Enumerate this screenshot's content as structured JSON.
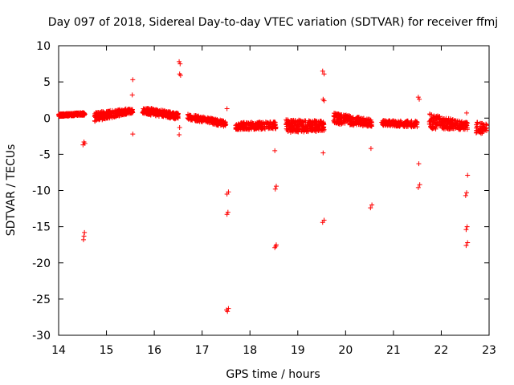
{
  "chart_data": {
    "type": "scatter",
    "title": "Day 097 of 2018, Sidereal Day-to-day VTEC variation (SDTVAR) for receiver ffmj",
    "xlabel": "GPS time / hours",
    "ylabel": "SDTVAR / TECUs",
    "xlim": [
      14,
      23
    ],
    "ylim": [
      -30,
      10
    ],
    "xticks": [
      14,
      15,
      16,
      17,
      18,
      19,
      20,
      21,
      22,
      23
    ],
    "yticks": [
      10,
      5,
      0,
      -5,
      -10,
      -15,
      -20,
      -25,
      -30
    ],
    "grid": false,
    "legend": "none",
    "marker": "+",
    "color": "#ff0000",
    "series": [
      {
        "name": "SDTVAR",
        "clusters": [
          {
            "x": [
              14.0,
              14.55
            ],
            "y_start": [
              0.2,
              0.6
            ],
            "y_end": [
              0.4,
              0.8
            ],
            "n": 260
          },
          {
            "x": [
              14.75,
              15.55
            ],
            "y_start": [
              -0.5,
              0.8
            ],
            "y_end": [
              0.7,
              1.4
            ],
            "n": 260
          },
          {
            "x": [
              15.75,
              16.5
            ],
            "y_start": [
              0.6,
              1.6
            ],
            "y_end": [
              -0.2,
              0.7
            ],
            "n": 260
          },
          {
            "x": [
              16.7,
              17.5
            ],
            "y_start": [
              -0.2,
              0.6
            ],
            "y_end": [
              -1.2,
              -0.4
            ],
            "n": 240
          },
          {
            "x": [
              17.7,
              18.55
            ],
            "y_start": [
              -1.6,
              -0.6
            ],
            "y_end": [
              -1.5,
              -0.5
            ],
            "n": 220
          },
          {
            "x": [
              18.75,
              19.55
            ],
            "y_start": [
              -2.0,
              -0.2
            ],
            "y_end": [
              -1.8,
              -0.4
            ],
            "n": 280
          },
          {
            "x": [
              19.75,
              20.55
            ],
            "y_start": [
              -0.8,
              0.8
            ],
            "y_end": [
              -1.2,
              -0.2
            ],
            "n": 240
          },
          {
            "x": [
              20.75,
              21.5
            ],
            "y_start": [
              -1.0,
              -0.3
            ],
            "y_end": [
              -1.3,
              -0.4
            ],
            "n": 180
          },
          {
            "x": [
              21.75,
              22.55
            ],
            "y_start": [
              -1.5,
              0.6
            ],
            "y_end": [
              -1.6,
              -0.6
            ],
            "n": 240
          },
          {
            "x": [
              22.73,
              22.95
            ],
            "y_start": [
              -2.3,
              -0.5
            ],
            "y_end": [
              -2.0,
              -0.8
            ],
            "n": 50
          }
        ],
        "points": [
          {
            "x": 14.53,
            "y": -3.3
          },
          {
            "x": 14.55,
            "y": -3.5
          },
          {
            "x": 14.51,
            "y": -3.7
          },
          {
            "x": 14.54,
            "y": -15.8
          },
          {
            "x": 14.53,
            "y": -16.3
          },
          {
            "x": 14.52,
            "y": -16.8
          },
          {
            "x": 15.55,
            "y": 5.3
          },
          {
            "x": 15.54,
            "y": 3.2
          },
          {
            "x": 15.55,
            "y": -2.2
          },
          {
            "x": 16.52,
            "y": 7.8
          },
          {
            "x": 16.54,
            "y": 7.5
          },
          {
            "x": 16.53,
            "y": 6.1
          },
          {
            "x": 16.55,
            "y": 5.9
          },
          {
            "x": 16.53,
            "y": -1.3
          },
          {
            "x": 16.52,
            "y": -2.3
          },
          {
            "x": 17.52,
            "y": 1.3
          },
          {
            "x": 17.55,
            "y": -10.2
          },
          {
            "x": 17.52,
            "y": -10.5
          },
          {
            "x": 17.54,
            "y": -13.0
          },
          {
            "x": 17.52,
            "y": -13.3
          },
          {
            "x": 17.55,
            "y": -26.3
          },
          {
            "x": 17.53,
            "y": -26.7
          },
          {
            "x": 17.51,
            "y": -26.5
          },
          {
            "x": 18.52,
            "y": -4.5
          },
          {
            "x": 18.55,
            "y": -9.4
          },
          {
            "x": 18.53,
            "y": -9.8
          },
          {
            "x": 18.55,
            "y": -17.5
          },
          {
            "x": 18.52,
            "y": -17.9
          },
          {
            "x": 18.54,
            "y": -17.7
          },
          {
            "x": 19.52,
            "y": 6.5
          },
          {
            "x": 19.55,
            "y": 6.1
          },
          {
            "x": 19.53,
            "y": 2.6
          },
          {
            "x": 19.55,
            "y": 2.4
          },
          {
            "x": 19.53,
            "y": -4.8
          },
          {
            "x": 19.55,
            "y": -14.1
          },
          {
            "x": 19.52,
            "y": -14.4
          },
          {
            "x": 20.53,
            "y": -4.2
          },
          {
            "x": 20.55,
            "y": -12.0
          },
          {
            "x": 20.52,
            "y": -12.4
          },
          {
            "x": 21.52,
            "y": 2.9
          },
          {
            "x": 21.54,
            "y": 2.6
          },
          {
            "x": 21.53,
            "y": -6.3
          },
          {
            "x": 21.55,
            "y": -9.2
          },
          {
            "x": 21.52,
            "y": -9.6
          },
          {
            "x": 22.53,
            "y": 0.7
          },
          {
            "x": 22.55,
            "y": -7.9
          },
          {
            "x": 22.53,
            "y": -10.3
          },
          {
            "x": 22.51,
            "y": -10.7
          },
          {
            "x": 22.54,
            "y": -15.0
          },
          {
            "x": 22.52,
            "y": -15.4
          },
          {
            "x": 22.55,
            "y": -17.2
          },
          {
            "x": 22.52,
            "y": -17.6
          }
        ]
      }
    ]
  }
}
